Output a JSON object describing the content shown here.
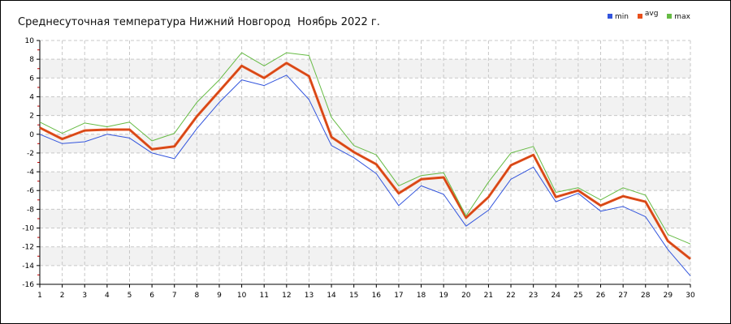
{
  "chart_data": {
    "type": "line",
    "title": "Среднесуточная температура Нижний Новгород  Ноябрь 2022 г.",
    "xlabel": "",
    "ylabel": "",
    "x": [
      1,
      2,
      3,
      4,
      5,
      6,
      7,
      8,
      9,
      10,
      11,
      12,
      13,
      14,
      15,
      16,
      17,
      18,
      19,
      20,
      21,
      22,
      23,
      24,
      25,
      26,
      27,
      28,
      29,
      30
    ],
    "xlim": [
      1,
      30
    ],
    "ylim": [
      -16,
      10
    ],
    "yticks": [
      10,
      8,
      6,
      4,
      2,
      0,
      -2,
      -4,
      -6,
      -8,
      -10,
      -12,
      -14,
      -16
    ],
    "grid": true,
    "legend_position": "top-right",
    "series": [
      {
        "name": "min",
        "color": "#3355dd",
        "values": [
          0.0,
          -1.0,
          -0.8,
          0.0,
          -0.4,
          -2.0,
          -2.6,
          0.6,
          3.4,
          5.8,
          5.2,
          6.3,
          3.7,
          -1.2,
          -2.5,
          -4.2,
          -7.6,
          -5.5,
          -6.4,
          -9.8,
          -8.1,
          -4.8,
          -3.5,
          -7.2,
          -6.3,
          -8.2,
          -7.7,
          -8.8,
          -12.3,
          -15.1
        ]
      },
      {
        "name": "avg",
        "color": "#e8501c",
        "values": [
          0.7,
          -0.5,
          0.4,
          0.5,
          0.5,
          -1.6,
          -1.3,
          1.9,
          4.6,
          7.3,
          6.0,
          7.6,
          6.2,
          -0.3,
          -1.9,
          -3.2,
          -6.3,
          -4.8,
          -4.6,
          -8.9,
          -6.7,
          -3.3,
          -2.2,
          -6.7,
          -6.0,
          -7.6,
          -6.6,
          -7.2,
          -11.4,
          -13.3
        ]
      },
      {
        "name": "max",
        "color": "#66bb44",
        "values": [
          1.3,
          0.1,
          1.2,
          0.8,
          1.3,
          -0.7,
          0.1,
          3.4,
          5.8,
          8.7,
          7.3,
          8.7,
          8.4,
          1.8,
          -1.2,
          -2.2,
          -5.5,
          -4.4,
          -4.1,
          -8.7,
          -5.1,
          -2.0,
          -1.3,
          -6.2,
          -5.7,
          -7.0,
          -5.7,
          -6.5,
          -10.7,
          -11.7
        ]
      }
    ]
  }
}
